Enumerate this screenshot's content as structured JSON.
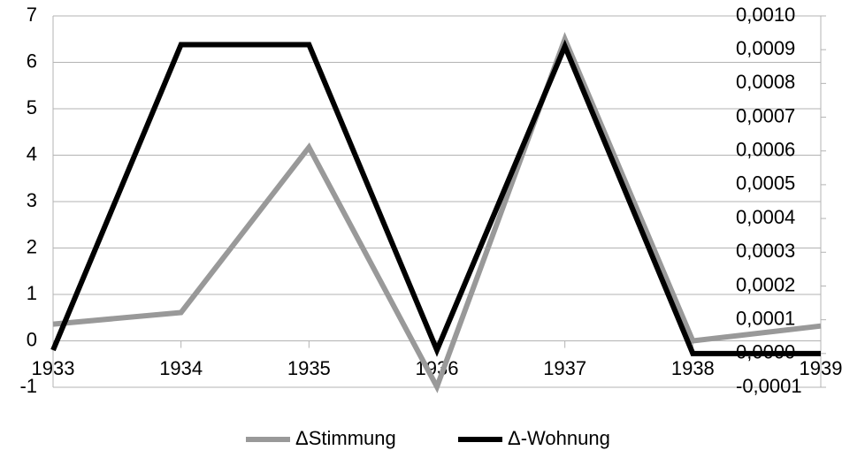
{
  "chart_data": {
    "type": "line",
    "categories": [
      "1933",
      "1934",
      "1935",
      "1936",
      "1937",
      "1938",
      "1939"
    ],
    "series": [
      {
        "name": "ΔStimmung",
        "color": "#999999",
        "values": [
          0.36,
          0.61,
          4.17,
          -0.99,
          6.5,
          0.0,
          0.32
        ]
      },
      {
        "name": "Δ-Wohnung",
        "color": "#000000",
        "axis": "y2",
        "values": [
          1e-05,
          0.000915,
          0.000915,
          1e-05,
          0.00091,
          0.0,
          0.0
        ]
      }
    ],
    "ylim": [
      -1,
      7
    ],
    "yticks": [
      -1,
      0,
      1,
      2,
      3,
      4,
      5,
      6,
      7
    ],
    "y2lim": [
      -0.0001,
      0.001
    ],
    "y2ticks": [
      {
        "value": -0.0001,
        "label": "-0,0001"
      },
      {
        "value": 0,
        "label": "0,0000"
      },
      {
        "value": 0.0001,
        "label": "0,0001"
      },
      {
        "value": 0.0002,
        "label": "0,0002"
      },
      {
        "value": 0.0003,
        "label": "0,0003"
      },
      {
        "value": 0.0004,
        "label": "0,0004"
      },
      {
        "value": 0.0005,
        "label": "0,0005"
      },
      {
        "value": 0.0006,
        "label": "0,0006"
      },
      {
        "value": 0.0007,
        "label": "0,0007"
      },
      {
        "value": 0.0008,
        "label": "0,0008"
      },
      {
        "value": 0.0009,
        "label": "0,0009"
      },
      {
        "value": 0.001,
        "label": "0,0010"
      }
    ],
    "grid": true,
    "legend": "bottom"
  }
}
